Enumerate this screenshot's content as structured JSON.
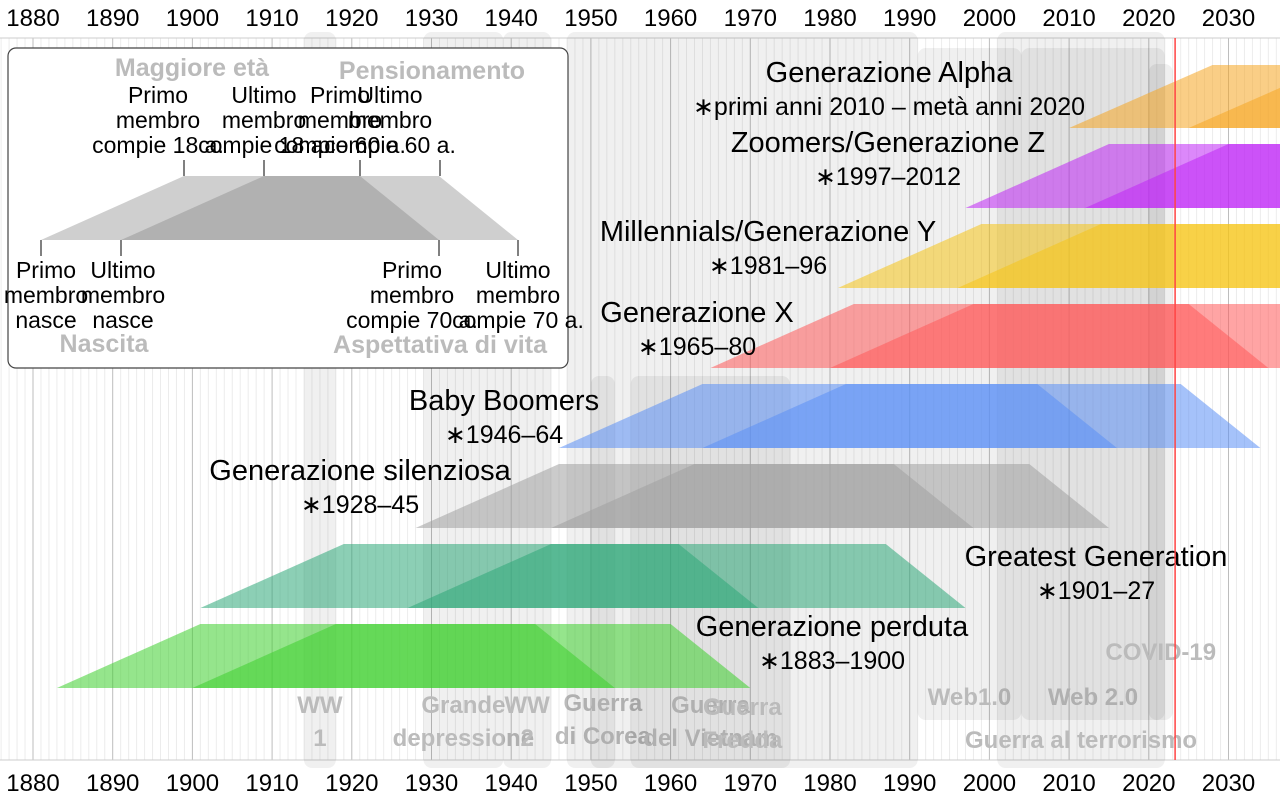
{
  "axis": {
    "years": [
      1880,
      1890,
      1900,
      1910,
      1920,
      1930,
      1940,
      1950,
      1960,
      1970,
      1980,
      1990,
      2000,
      2010,
      2020,
      2030
    ],
    "current_year": 2023.3
  },
  "generations": [
    {
      "name": "Generazione Alpha",
      "years_label": "∗primi anni 2010 – metà anni 2020",
      "birth_start": 2010,
      "birth_end": 2025,
      "color": "#f5a623"
    },
    {
      "name": "Zoomers/Generazione Z",
      "years_label": "∗1997–2012",
      "birth_start": 1997,
      "birth_end": 2012,
      "color": "#c026f5"
    },
    {
      "name": "Millennials/Generazione Y",
      "years_label": "∗1981–96",
      "birth_start": 1981,
      "birth_end": 1996,
      "color": "#f5c518"
    },
    {
      "name": "Generazione X",
      "years_label": "∗1965–80",
      "birth_start": 1965,
      "birth_end": 1980,
      "color": "#ff5a5a"
    },
    {
      "name": "Baby Boomers",
      "years_label": "∗1946–64",
      "birth_start": 1946,
      "birth_end": 1964,
      "color": "#5b8ff5"
    },
    {
      "name": "Generazione silenziosa",
      "years_label": "∗1928–45",
      "birth_start": 1928,
      "birth_end": 1945,
      "color": "#a0a0a0"
    },
    {
      "name": "Greatest Generation",
      "years_label": "∗1901–27",
      "birth_start": 1901,
      "birth_end": 1927,
      "color": "#2ea878"
    },
    {
      "name": "Generazione perduta",
      "years_label": "∗1883–1900",
      "birth_start": 1883,
      "birth_end": 1900,
      "color": "#3ecf2e"
    }
  ],
  "events": [
    {
      "lines": [
        "WW",
        "1"
      ],
      "start": 1914,
      "end": 1918
    },
    {
      "lines": [
        "Grande",
        "depressione"
      ],
      "start": 1929,
      "end": 1939
    },
    {
      "lines": [
        "WW",
        "2"
      ],
      "start": 1939,
      "end": 1945
    },
    {
      "lines": [
        "Guerra",
        "di Corea"
      ],
      "start": 1950,
      "end": 1953
    },
    {
      "lines": [
        "Guerra",
        "del Vietnam"
      ],
      "start": 1955,
      "end": 1975
    },
    {
      "lines": [
        "Guerra",
        "Fredda"
      ],
      "start": 1947,
      "end": 1991
    },
    {
      "lines": [
        "Web1.0"
      ],
      "start": 1991,
      "end": 2004
    },
    {
      "lines": [
        "Web 2.0"
      ],
      "start": 2004,
      "end": 2022
    },
    {
      "lines": [
        "Guerra al terrorismo"
      ],
      "start": 2001,
      "end": 2022
    },
    {
      "lines": [
        "COVID-19"
      ],
      "start": 2020,
      "end": 2023
    }
  ],
  "legend": {
    "top_left_heading": "Maggiore età",
    "top_right_heading": "Pensionamento",
    "bottom_left_heading": "Nascita",
    "bottom_right_heading": "Aspettativa di vita",
    "top_labels": [
      [
        "Primo",
        "membro",
        "compie 18 a."
      ],
      [
        "Ultimo",
        "membro",
        "compie 18 a."
      ],
      [
        "Primo",
        "membro",
        "compie 60 a."
      ],
      [
        "Ultimo",
        "membro",
        "compie 60 a."
      ]
    ],
    "bottom_labels": [
      [
        "Primo",
        "membro",
        "nasce"
      ],
      [
        "Ultimo",
        "membro",
        "nasce"
      ],
      [
        "Primo",
        "membro",
        "compie 70 a."
      ],
      [
        "Ultimo",
        "membro",
        "compie 70 a."
      ]
    ]
  }
}
